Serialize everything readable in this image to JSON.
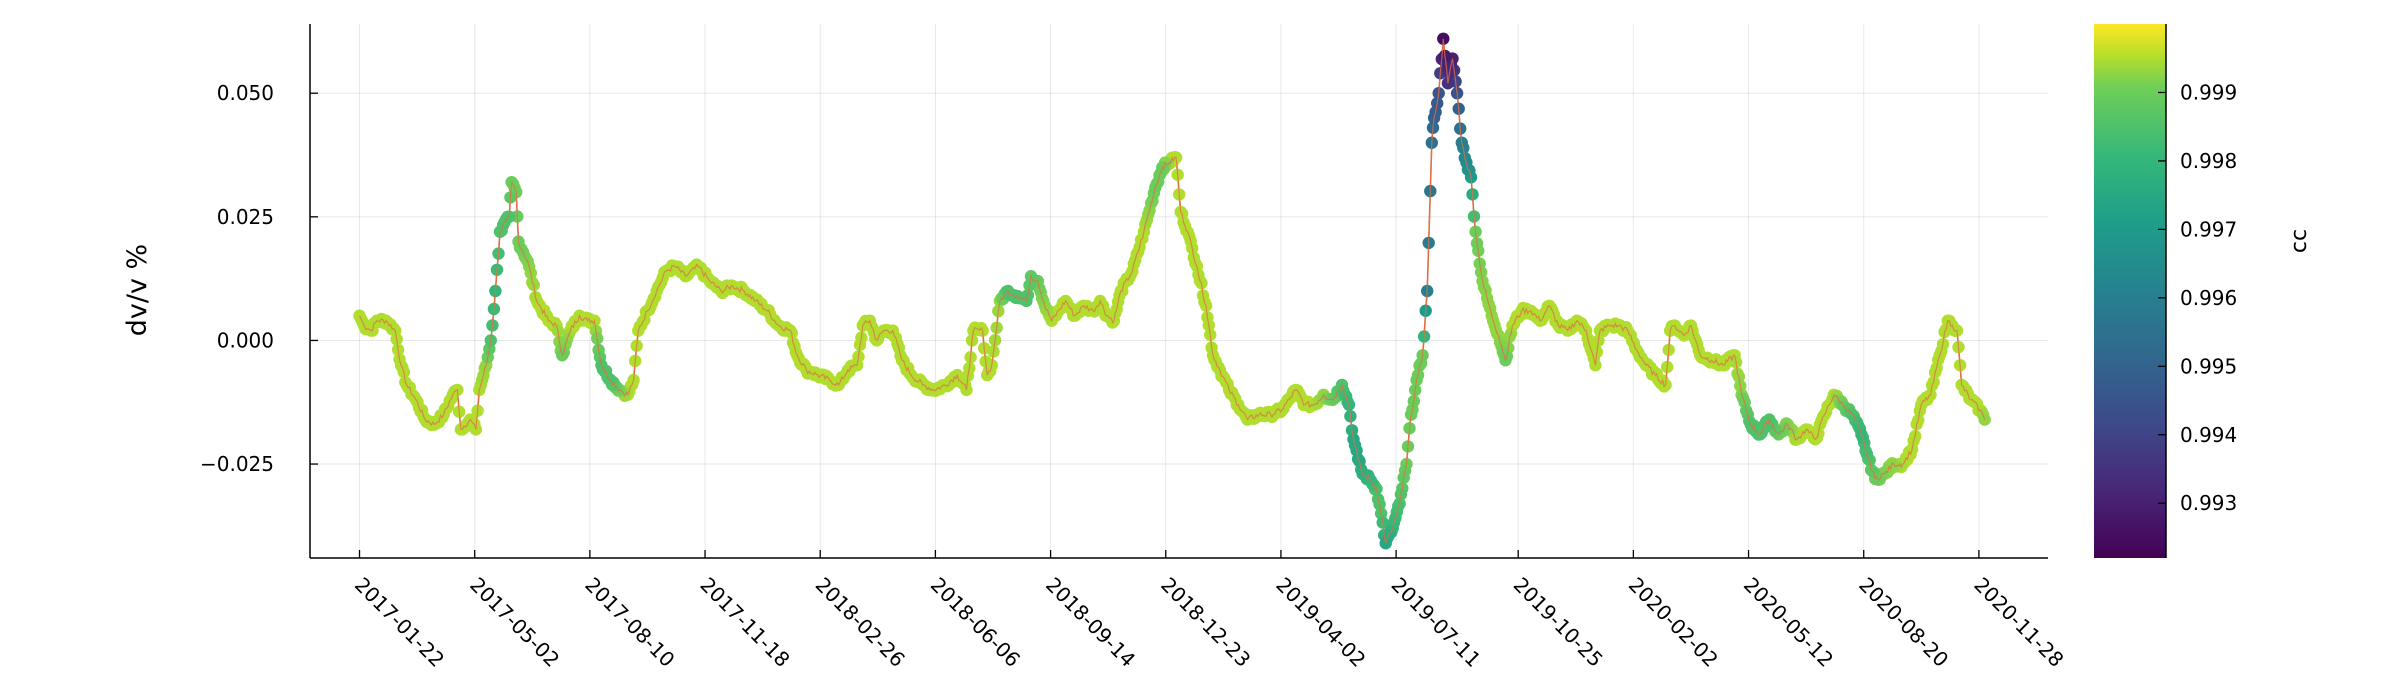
{
  "chart_data": {
    "type": "scatter",
    "title": "",
    "xlabel": "",
    "ylabel": "dv/v %",
    "x_tick_labels": [
      "2017-01-22",
      "2017-05-02",
      "2017-08-10",
      "2017-11-18",
      "2018-02-26",
      "2018-06-06",
      "2018-09-14",
      "2018-12-23",
      "2019-04-02",
      "2019-07-11",
      "2019-10-25",
      "2020-02-02",
      "2020-05-12",
      "2020-08-20",
      "2020-11-28"
    ],
    "y_ticks": [
      -0.025,
      0.0,
      0.025,
      0.05
    ],
    "y_tick_labels": [
      "−0.025",
      "0.000",
      "0.025",
      "0.050"
    ],
    "xlim": [
      "2016-12-10",
      "2021-01-27"
    ],
    "ylim": [
      -0.044,
      0.064
    ],
    "grid": true,
    "line_color": "#e26f46",
    "colorbar": {
      "label": "cc",
      "min": 0.9922,
      "max": 1.0,
      "ticks": [
        0.993,
        0.994,
        0.995,
        0.996,
        0.997,
        0.998,
        0.999
      ],
      "tick_labels": [
        "0.993",
        "0.994",
        "0.995",
        "0.996",
        "0.997",
        "0.998",
        "0.999"
      ],
      "colormap": "viridis"
    },
    "keypoints": [
      [
        "2017-01-22",
        0.005,
        0.9995
      ],
      [
        "2017-01-26",
        0.003,
        0.9995
      ],
      [
        "2017-02-01",
        0.002,
        0.9995
      ],
      [
        "2017-02-06",
        0.004,
        0.9995
      ],
      [
        "2017-02-14",
        0.004,
        0.9995
      ],
      [
        "2017-02-22",
        0.002,
        0.9995
      ],
      [
        "2017-02-27",
        -0.005,
        0.9995
      ],
      [
        "2017-03-04",
        -0.009,
        0.9995
      ],
      [
        "2017-03-12",
        -0.012,
        0.9995
      ],
      [
        "2017-03-20",
        -0.016,
        0.9995
      ],
      [
        "2017-03-28",
        -0.017,
        0.9995
      ],
      [
        "2017-04-05",
        -0.015,
        0.9995
      ],
      [
        "2017-04-13",
        -0.011,
        0.9995
      ],
      [
        "2017-04-17",
        -0.01,
        0.9995
      ],
      [
        "2017-04-20",
        -0.018,
        0.9995
      ],
      [
        "2017-04-28",
        -0.016,
        0.9995
      ],
      [
        "2017-05-03",
        -0.018,
        0.9995
      ],
      [
        "2017-05-06",
        -0.01,
        0.9995
      ],
      [
        "2017-05-12",
        -0.005,
        0.9993
      ],
      [
        "2017-05-16",
        0.0,
        0.9985
      ],
      [
        "2017-05-20",
        0.01,
        0.998
      ],
      [
        "2017-05-24",
        0.022,
        0.9985
      ],
      [
        "2017-06-01",
        0.025,
        0.9985
      ],
      [
        "2017-06-03",
        0.032,
        0.999
      ],
      [
        "2017-06-07",
        0.03,
        0.999
      ],
      [
        "2017-06-09",
        0.02,
        0.999
      ],
      [
        "2017-06-17",
        0.016,
        0.9992
      ],
      [
        "2017-06-25",
        0.008,
        0.9995
      ],
      [
        "2017-07-05",
        0.004,
        0.9995
      ],
      [
        "2017-07-12",
        0.003,
        0.9995
      ],
      [
        "2017-07-17",
        -0.003,
        0.999
      ],
      [
        "2017-07-24",
        0.002,
        0.9995
      ],
      [
        "2017-08-01",
        0.005,
        0.9995
      ],
      [
        "2017-08-08",
        0.004,
        0.9995
      ],
      [
        "2017-08-14",
        0.004,
        0.9995
      ],
      [
        "2017-08-20",
        -0.005,
        0.9985
      ],
      [
        "2017-08-28",
        -0.008,
        0.9985
      ],
      [
        "2017-09-05",
        -0.01,
        0.9992
      ],
      [
        "2017-09-12",
        -0.011,
        0.9995
      ],
      [
        "2017-09-17",
        -0.008,
        0.9995
      ],
      [
        "2017-09-21",
        0.002,
        0.9995
      ],
      [
        "2017-09-29",
        0.006,
        0.9995
      ],
      [
        "2017-10-07",
        0.01,
        0.9995
      ],
      [
        "2017-10-15",
        0.014,
        0.9995
      ],
      [
        "2017-10-23",
        0.015,
        0.9995
      ],
      [
        "2017-11-01",
        0.013,
        0.9995
      ],
      [
        "2017-11-12",
        0.015,
        0.9995
      ],
      [
        "2017-11-22",
        0.012,
        0.9995
      ],
      [
        "2017-12-02",
        0.01,
        0.9995
      ],
      [
        "2017-12-12",
        0.011,
        0.9995
      ],
      [
        "2017-12-22",
        0.01,
        0.9995
      ],
      [
        "2018-01-01",
        0.008,
        0.9995
      ],
      [
        "2018-01-11",
        0.006,
        0.9995
      ],
      [
        "2018-01-21",
        0.003,
        0.9995
      ],
      [
        "2018-01-31",
        0.002,
        0.9995
      ],
      [
        "2018-02-06",
        -0.003,
        0.9995
      ],
      [
        "2018-02-14",
        -0.006,
        0.9995
      ],
      [
        "2018-02-24",
        -0.007,
        0.9995
      ],
      [
        "2018-03-06",
        -0.008,
        0.9995
      ],
      [
        "2018-03-14",
        -0.009,
        0.9995
      ],
      [
        "2018-03-22",
        -0.006,
        0.9995
      ],
      [
        "2018-03-30",
        -0.005,
        0.9995
      ],
      [
        "2018-04-04",
        0.003,
        0.9995
      ],
      [
        "2018-04-10",
        0.004,
        0.9995
      ],
      [
        "2018-04-16",
        0.0,
        0.9995
      ],
      [
        "2018-04-22",
        0.002,
        0.9995
      ],
      [
        "2018-04-30",
        0.002,
        0.9995
      ],
      [
        "2018-05-08",
        -0.004,
        0.9995
      ],
      [
        "2018-05-16",
        -0.007,
        0.9995
      ],
      [
        "2018-05-26",
        -0.009,
        0.9995
      ],
      [
        "2018-06-05",
        -0.01,
        0.9995
      ],
      [
        "2018-06-15",
        -0.009,
        0.9995
      ],
      [
        "2018-06-25",
        -0.007,
        0.9995
      ],
      [
        "2018-07-03",
        -0.01,
        0.9995
      ],
      [
        "2018-07-09",
        0.002,
        0.9995
      ],
      [
        "2018-07-17",
        0.002,
        0.9995
      ],
      [
        "2018-07-21",
        -0.007,
        0.9995
      ],
      [
        "2018-07-25",
        -0.005,
        0.9995
      ],
      [
        "2018-08-01",
        0.008,
        0.9993
      ],
      [
        "2018-08-08",
        0.01,
        0.9985
      ],
      [
        "2018-08-16",
        0.009,
        0.9985
      ],
      [
        "2018-08-24",
        0.008,
        0.9985
      ],
      [
        "2018-08-28",
        0.013,
        0.9988
      ],
      [
        "2018-09-03",
        0.012,
        0.999
      ],
      [
        "2018-09-09",
        0.007,
        0.9993
      ],
      [
        "2018-09-15",
        0.004,
        0.9995
      ],
      [
        "2018-09-21",
        0.006,
        0.9995
      ],
      [
        "2018-09-27",
        0.008,
        0.9995
      ],
      [
        "2018-10-05",
        0.005,
        0.9995
      ],
      [
        "2018-10-13",
        0.007,
        0.9995
      ],
      [
        "2018-10-21",
        0.006,
        0.9995
      ],
      [
        "2018-10-27",
        0.008,
        0.9995
      ],
      [
        "2018-11-02",
        0.005,
        0.9995
      ],
      [
        "2018-11-08",
        0.004,
        0.9995
      ],
      [
        "2018-11-14",
        0.01,
        0.9995
      ],
      [
        "2018-11-24",
        0.014,
        0.9995
      ],
      [
        "2018-12-04",
        0.022,
        0.9995
      ],
      [
        "2018-12-14",
        0.031,
        0.999
      ],
      [
        "2018-12-20",
        0.035,
        0.999
      ],
      [
        "2018-12-26",
        0.036,
        0.9995
      ],
      [
        "2019-01-01",
        0.037,
        0.9995
      ],
      [
        "2019-01-05",
        0.026,
        0.9995
      ],
      [
        "2019-01-11",
        0.022,
        0.9995
      ],
      [
        "2019-01-19",
        0.015,
        0.9995
      ],
      [
        "2019-01-27",
        0.007,
        0.9995
      ],
      [
        "2019-02-02",
        -0.003,
        0.9995
      ],
      [
        "2019-02-08",
        -0.006,
        0.9995
      ],
      [
        "2019-02-16",
        -0.01,
        0.9995
      ],
      [
        "2019-02-24",
        -0.013,
        0.9995
      ],
      [
        "2019-03-04",
        -0.016,
        0.9995
      ],
      [
        "2019-03-14",
        -0.015,
        0.9995
      ],
      [
        "2019-03-24",
        -0.015,
        0.9995
      ],
      [
        "2019-04-03",
        -0.014,
        0.9995
      ],
      [
        "2019-04-09",
        -0.012,
        0.9995
      ],
      [
        "2019-04-15",
        -0.01,
        0.9995
      ],
      [
        "2019-04-23",
        -0.013,
        0.9995
      ],
      [
        "2019-05-01",
        -0.013,
        0.9995
      ],
      [
        "2019-05-09",
        -0.011,
        0.9993
      ],
      [
        "2019-05-17",
        -0.012,
        0.999
      ],
      [
        "2019-05-25",
        -0.009,
        0.9985
      ],
      [
        "2019-05-31",
        -0.013,
        0.998
      ],
      [
        "2019-06-04",
        -0.02,
        0.9975
      ],
      [
        "2019-06-08",
        -0.024,
        0.9975
      ],
      [
        "2019-06-12",
        -0.027,
        0.9978
      ],
      [
        "2019-06-18",
        -0.028,
        0.998
      ],
      [
        "2019-06-24",
        -0.03,
        0.9985
      ],
      [
        "2019-06-28",
        -0.035,
        0.9985
      ],
      [
        "2019-07-02",
        -0.041,
        0.9975
      ],
      [
        "2019-07-08",
        -0.038,
        0.998
      ],
      [
        "2019-07-14",
        -0.033,
        0.9985
      ],
      [
        "2019-07-20",
        -0.025,
        0.999
      ],
      [
        "2019-07-24",
        -0.015,
        0.999
      ],
      [
        "2019-07-30",
        -0.007,
        0.999
      ],
      [
        "2019-08-03",
        -0.003,
        0.999
      ],
      [
        "2019-08-07",
        0.01,
        0.996
      ],
      [
        "2019-08-11",
        0.04,
        0.9955
      ],
      [
        "2019-08-13",
        0.045,
        0.995
      ],
      [
        "2019-08-17",
        0.05,
        0.9945
      ],
      [
        "2019-08-21",
        0.061,
        0.9925
      ],
      [
        "2019-08-25",
        0.052,
        0.9935
      ],
      [
        "2019-08-29",
        0.057,
        0.993
      ],
      [
        "2019-09-02",
        0.05,
        0.9945
      ],
      [
        "2019-09-06",
        0.04,
        0.996
      ],
      [
        "2019-09-10",
        0.036,
        0.9965
      ],
      [
        "2019-09-14",
        0.033,
        0.997
      ],
      [
        "2019-09-18",
        0.022,
        0.999
      ],
      [
        "2019-09-24",
        0.012,
        0.9992
      ],
      [
        "2019-10-02",
        0.005,
        0.9993
      ],
      [
        "2019-10-08",
        0.001,
        0.9993
      ],
      [
        "2019-10-14",
        -0.004,
        0.999
      ],
      [
        "2019-10-20",
        0.003,
        0.9995
      ],
      [
        "2019-10-28",
        0.006,
        0.9995
      ],
      [
        "2019-11-05",
        0.006,
        0.9995
      ],
      [
        "2019-11-13",
        0.004,
        0.9995
      ],
      [
        "2019-11-21",
        0.007,
        0.9995
      ],
      [
        "2019-11-29",
        0.003,
        0.9995
      ],
      [
        "2019-12-07",
        0.002,
        0.9995
      ],
      [
        "2019-12-15",
        0.004,
        0.9995
      ],
      [
        "2019-12-23",
        0.002,
        0.9995
      ],
      [
        "2019-12-31",
        -0.005,
        0.9995
      ],
      [
        "2020-01-04",
        0.002,
        0.9995
      ],
      [
        "2020-01-12",
        0.003,
        0.9995
      ],
      [
        "2020-01-20",
        0.003,
        0.9995
      ],
      [
        "2020-01-28",
        0.002,
        0.9995
      ],
      [
        "2020-02-05",
        -0.002,
        0.9995
      ],
      [
        "2020-02-13",
        -0.005,
        0.9995
      ],
      [
        "2020-02-21",
        -0.007,
        0.9995
      ],
      [
        "2020-03-01",
        -0.009,
        0.9995
      ],
      [
        "2020-03-05",
        0.002,
        0.9995
      ],
      [
        "2020-03-09",
        0.003,
        0.9995
      ],
      [
        "2020-03-17",
        0.001,
        0.9995
      ],
      [
        "2020-03-23",
        0.003,
        0.9995
      ],
      [
        "2020-03-31",
        -0.003,
        0.9995
      ],
      [
        "2020-04-10",
        -0.004,
        0.9995
      ],
      [
        "2020-04-20",
        -0.005,
        0.9995
      ],
      [
        "2020-04-30",
        -0.003,
        0.9995
      ],
      [
        "2020-05-06",
        -0.011,
        0.9992
      ],
      [
        "2020-05-14",
        -0.017,
        0.9985
      ],
      [
        "2020-05-22",
        -0.019,
        0.9985
      ],
      [
        "2020-05-30",
        -0.016,
        0.9985
      ],
      [
        "2020-06-07",
        -0.019,
        0.999
      ],
      [
        "2020-06-15",
        -0.017,
        0.9992
      ],
      [
        "2020-06-23",
        -0.02,
        0.9995
      ],
      [
        "2020-07-01",
        -0.018,
        0.9995
      ],
      [
        "2020-07-09",
        -0.02,
        0.9995
      ],
      [
        "2020-07-17",
        -0.015,
        0.9995
      ],
      [
        "2020-07-25",
        -0.011,
        0.9995
      ],
      [
        "2020-08-02",
        -0.013,
        0.999
      ],
      [
        "2020-08-10",
        -0.015,
        0.9985
      ],
      [
        "2020-08-18",
        -0.019,
        0.998
      ],
      [
        "2020-08-24",
        -0.024,
        0.9985
      ],
      [
        "2020-08-30",
        -0.028,
        0.999
      ],
      [
        "2020-09-07",
        -0.027,
        0.9992
      ],
      [
        "2020-09-15",
        -0.025,
        0.9993
      ],
      [
        "2020-09-23",
        -0.025,
        0.9995
      ],
      [
        "2020-10-01",
        -0.022,
        0.9995
      ],
      [
        "2020-10-09",
        -0.013,
        0.9995
      ],
      [
        "2020-10-17",
        -0.011,
        0.9995
      ],
      [
        "2020-10-25",
        -0.003,
        0.9995
      ],
      [
        "2020-11-01",
        0.004,
        0.9995
      ],
      [
        "2020-11-05",
        0.003,
        0.9995
      ],
      [
        "2020-11-09",
        0.002,
        0.9995
      ],
      [
        "2020-11-13",
        -0.009,
        0.9995
      ],
      [
        "2020-11-21",
        -0.012,
        0.9995
      ],
      [
        "2020-11-29",
        -0.014,
        0.9995
      ],
      [
        "2020-12-03",
        -0.016,
        0.9993
      ]
    ]
  }
}
